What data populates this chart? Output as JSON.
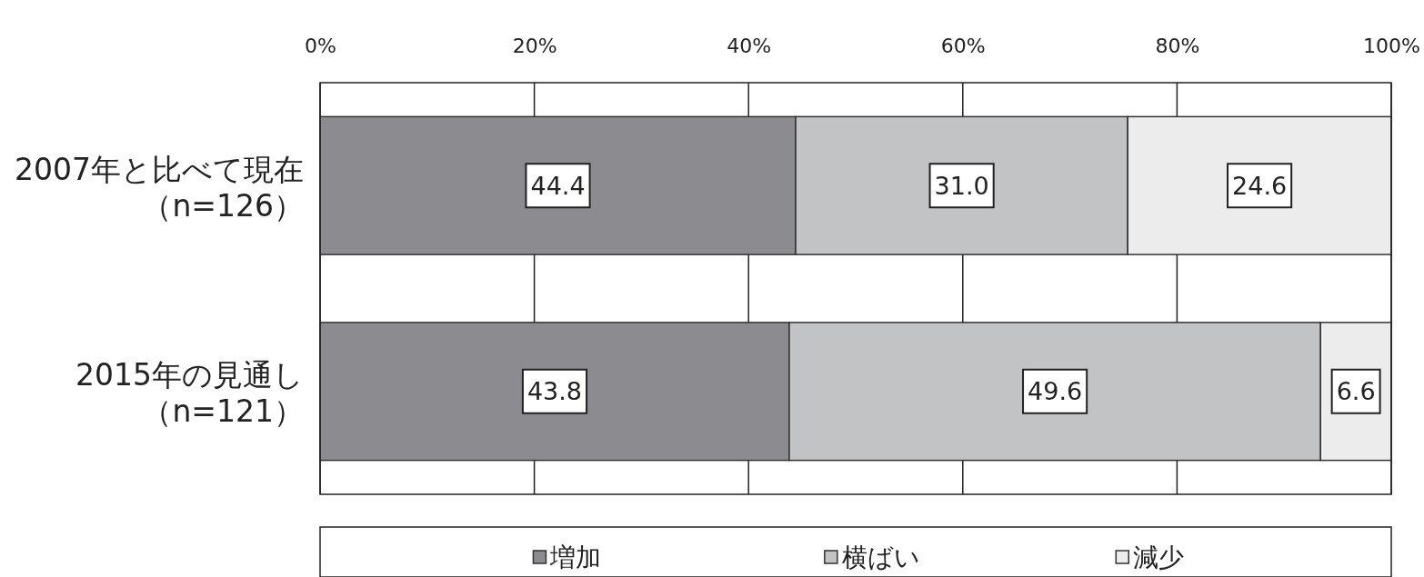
{
  "chart_data": {
    "type": "bar",
    "orientation": "horizontal",
    "stacked": true,
    "categories": [
      "2007年と比べて現在（n=126）",
      "2015年の見通し（n=121）"
    ],
    "series": [
      {
        "name": "増加",
        "color": "#8c8b90",
        "values": [
          44.4,
          43.8
        ],
        "value_labels": [
          "44.4",
          "43.8"
        ]
      },
      {
        "name": "横ばい",
        "color": "#c1c3c5",
        "values": [
          31.0,
          49.6
        ],
        "value_labels": [
          "31.0",
          "49.6"
        ]
      },
      {
        "name": "減少",
        "color": "#ececec",
        "values": [
          24.6,
          6.6
        ],
        "value_labels": [
          "24.6",
          "6.6"
        ]
      }
    ],
    "xlim": [
      0,
      100
    ],
    "xticks": [
      {
        "value": 0,
        "label": "0%"
      },
      {
        "value": 20,
        "label": "20%"
      },
      {
        "value": 40,
        "label": "40%"
      },
      {
        "value": 60,
        "label": "60%"
      },
      {
        "value": 80,
        "label": "80%"
      },
      {
        "value": 100,
        "label": "100%"
      }
    ],
    "grid": "x",
    "legend": "bottom"
  }
}
